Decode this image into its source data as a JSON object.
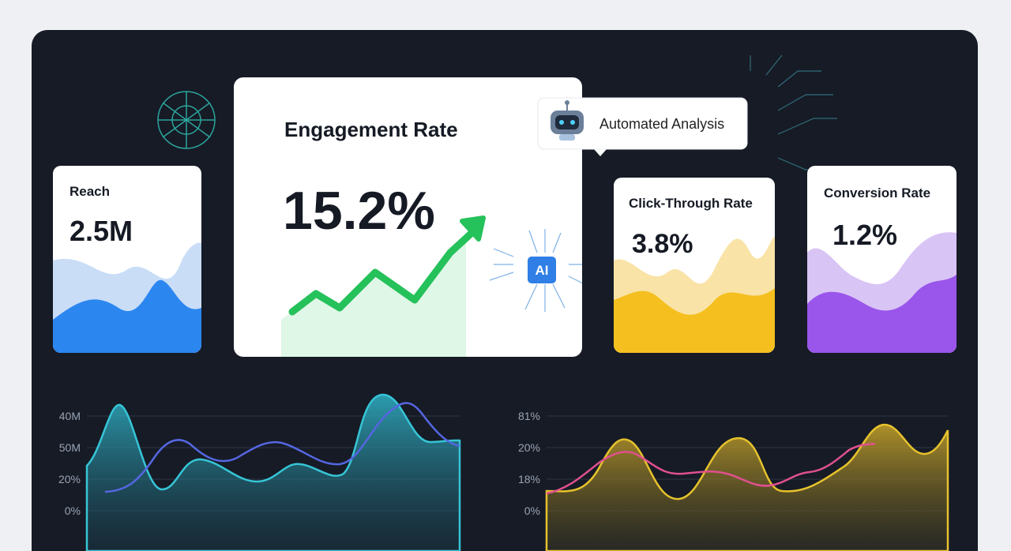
{
  "cards": [
    {
      "title": "Reach",
      "value": "2.5M"
    },
    {
      "title": "Engagement Rate",
      "value": "15.2%"
    },
    {
      "title": "Click-Through Rate",
      "value": "3.8%"
    },
    {
      "title": "Conversion Rate",
      "value": "1.2%"
    }
  ],
  "badge": {
    "label": "Automated Analysis"
  },
  "ai_chip": "AI",
  "left_chart": {
    "y_labels": [
      "40M",
      "50M",
      "20%",
      "0%"
    ]
  },
  "right_chart": {
    "y_labels": [
      "81%",
      "20%",
      "18%",
      "0%"
    ]
  }
}
